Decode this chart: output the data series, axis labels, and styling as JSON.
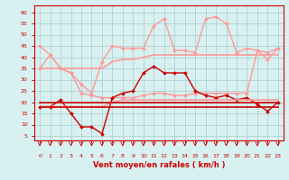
{
  "x": [
    0,
    1,
    2,
    3,
    4,
    5,
    6,
    7,
    8,
    9,
    10,
    11,
    12,
    13,
    14,
    15,
    16,
    17,
    18,
    19,
    20,
    21,
    22,
    23
  ],
  "series": [
    {
      "name": "line1_pink_upper",
      "color": "#FF9999",
      "lw": 1.0,
      "marker": "D",
      "markersize": 2.0,
      "y": [
        45,
        41,
        35,
        33,
        28,
        24,
        38,
        45,
        44,
        44,
        44,
        54,
        57,
        43,
        43,
        42,
        57,
        58,
        55,
        42,
        44,
        43,
        42,
        44
      ]
    },
    {
      "name": "line2_pink_mid",
      "color": "#FF9999",
      "lw": 1.0,
      "marker": "D",
      "markersize": 2.0,
      "y": [
        35,
        41,
        35,
        33,
        24,
        23,
        22,
        22,
        22,
        22,
        23,
        24,
        24,
        23,
        23,
        24,
        24,
        24,
        24,
        24,
        24,
        43,
        39,
        44
      ]
    },
    {
      "name": "line3_darkred_upper",
      "color": "#CC0000",
      "lw": 1.0,
      "marker": "D",
      "markersize": 2.0,
      "y": [
        18,
        18,
        21,
        15,
        9,
        9,
        6,
        22,
        24,
        25,
        33,
        36,
        33,
        33,
        33,
        25,
        23,
        22,
        23,
        21,
        22,
        19,
        16,
        20
      ]
    },
    {
      "name": "line4_pink_lower",
      "color": "#FF9999",
      "lw": 1.2,
      "marker": null,
      "markersize": 0,
      "y": [
        18,
        18,
        18,
        18,
        18,
        18,
        18,
        20,
        21,
        21,
        21,
        21,
        21,
        21,
        21,
        21,
        21,
        21,
        21,
        21,
        21,
        21,
        21,
        21
      ]
    },
    {
      "name": "line5_darkred_lower",
      "color": "#CC0000",
      "lw": 1.2,
      "marker": null,
      "markersize": 0,
      "y": [
        18,
        18,
        18,
        18,
        18,
        18,
        18,
        18,
        18,
        18,
        18,
        18,
        18,
        18,
        18,
        18,
        18,
        18,
        18,
        18,
        18,
        18,
        18,
        18
      ]
    },
    {
      "name": "line6_darkred_flat",
      "color": "#CC0000",
      "lw": 1.2,
      "marker": null,
      "markersize": 0,
      "y": [
        20,
        20,
        20,
        20,
        20,
        20,
        20,
        20,
        20,
        20,
        20,
        20,
        20,
        20,
        20,
        20,
        20,
        20,
        20,
        20,
        20,
        20,
        20,
        20
      ]
    },
    {
      "name": "line7_pink_flat",
      "color": "#FF9999",
      "lw": 1.2,
      "marker": null,
      "markersize": 0,
      "y": [
        35,
        35,
        35,
        35,
        35,
        35,
        35,
        38,
        39,
        39,
        40,
        41,
        41,
        41,
        41,
        41,
        41,
        41,
        41,
        41,
        41,
        41,
        41,
        41
      ]
    }
  ],
  "xlim": [
    -0.5,
    23.5
  ],
  "ylim": [
    3,
    63
  ],
  "yticks": [
    5,
    10,
    15,
    20,
    25,
    30,
    35,
    40,
    45,
    50,
    55,
    60
  ],
  "xticks": [
    0,
    1,
    2,
    3,
    4,
    5,
    6,
    7,
    8,
    9,
    10,
    11,
    12,
    13,
    14,
    15,
    16,
    17,
    18,
    19,
    20,
    21,
    22,
    23
  ],
  "xlabel": "Vent moyen/en rafales ( km/h )",
  "xlabel_color": "#CC0000",
  "xlabel_fontsize": 6,
  "bg_color": "#D8F0F0",
  "grid_color": "#AACCCC",
  "tick_color": "#CC0000",
  "spine_color": "#CC0000"
}
